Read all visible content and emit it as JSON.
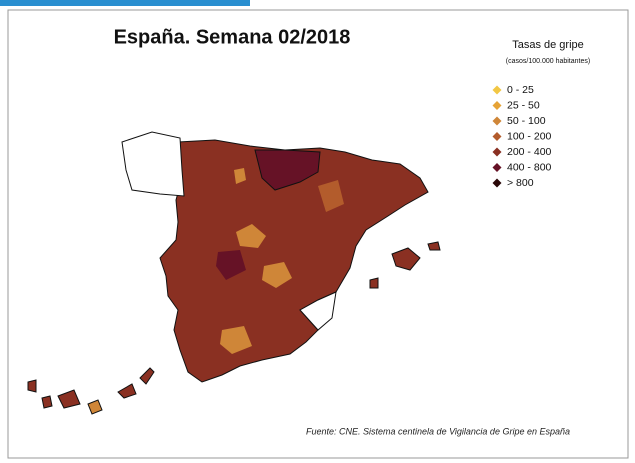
{
  "header": {
    "title": "España. Semana 02/2018"
  },
  "legend": {
    "title": "Tasas de gripe",
    "subtitle": "(casos/100.000 habitantes)",
    "items": [
      {
        "label": "0 - 25",
        "color": "#f2c744"
      },
      {
        "label": "25 - 50",
        "color": "#e6a336"
      },
      {
        "label": "50 - 100",
        "color": "#cf8638"
      },
      {
        "label": "100 - 200",
        "color": "#b35c2c"
      },
      {
        "label": "200 - 400",
        "color": "#8a3022"
      },
      {
        "label": "400 - 800",
        "color": "#661226"
      },
      {
        "label": "> 800",
        "color": "#2a0808"
      }
    ]
  },
  "source": "Fuente: CNE. Sistema centinela de Vigilancia de Gripe en España"
}
